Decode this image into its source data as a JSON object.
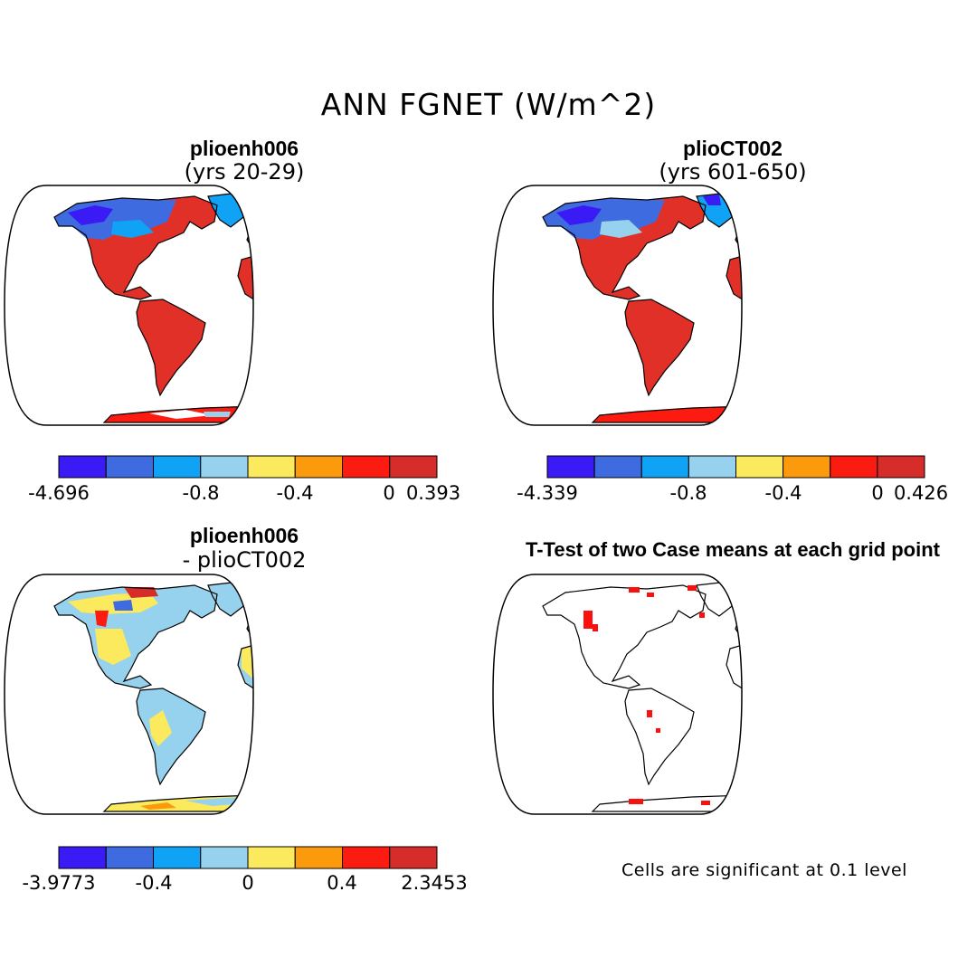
{
  "figure": {
    "title": "ANN FGNET (W/m^2)",
    "panels": [
      {
        "id": "case1",
        "label": "plioenh006",
        "sublabel": "(yrs 20-29)",
        "colorbar": {
          "colors": [
            "#3a1af5",
            "#3f6be0",
            "#10a2f5",
            "#96d1ee",
            "#fbe95e",
            "#fb9b0b",
            "#fb1b10",
            "#d62d2a"
          ],
          "tick_labels": [
            "-4.696",
            "-0.8",
            "-0.4",
            "0",
            "0.393"
          ]
        }
      },
      {
        "id": "case2",
        "label": "plioCT002",
        "sublabel": "(yrs 601-650)",
        "colorbar": {
          "colors": [
            "#3a1af5",
            "#3f6be0",
            "#10a2f5",
            "#96d1ee",
            "#fbe95e",
            "#fb9b0b",
            "#fb1b10",
            "#d62d2a"
          ],
          "tick_labels": [
            "-4.339",
            "-0.8",
            "-0.4",
            "0",
            "0.426"
          ]
        }
      },
      {
        "id": "diff",
        "label": "plioenh006",
        "sublabel": "- plioCT002",
        "colorbar": {
          "colors": [
            "#3a1af5",
            "#3f6be0",
            "#10a2f5",
            "#96d1ee",
            "#fbe95e",
            "#fb9b0b",
            "#fb1b10",
            "#d62d2a"
          ],
          "tick_labels": [
            "-3.9773",
            "-0.4",
            "0",
            "0.4",
            "2.3453"
          ]
        }
      },
      {
        "id": "ttest",
        "label": "T-Test of two Case means at each grid point",
        "note": "Cells are significant at 0.1 level",
        "significance_color": "#fb1010"
      }
    ]
  }
}
